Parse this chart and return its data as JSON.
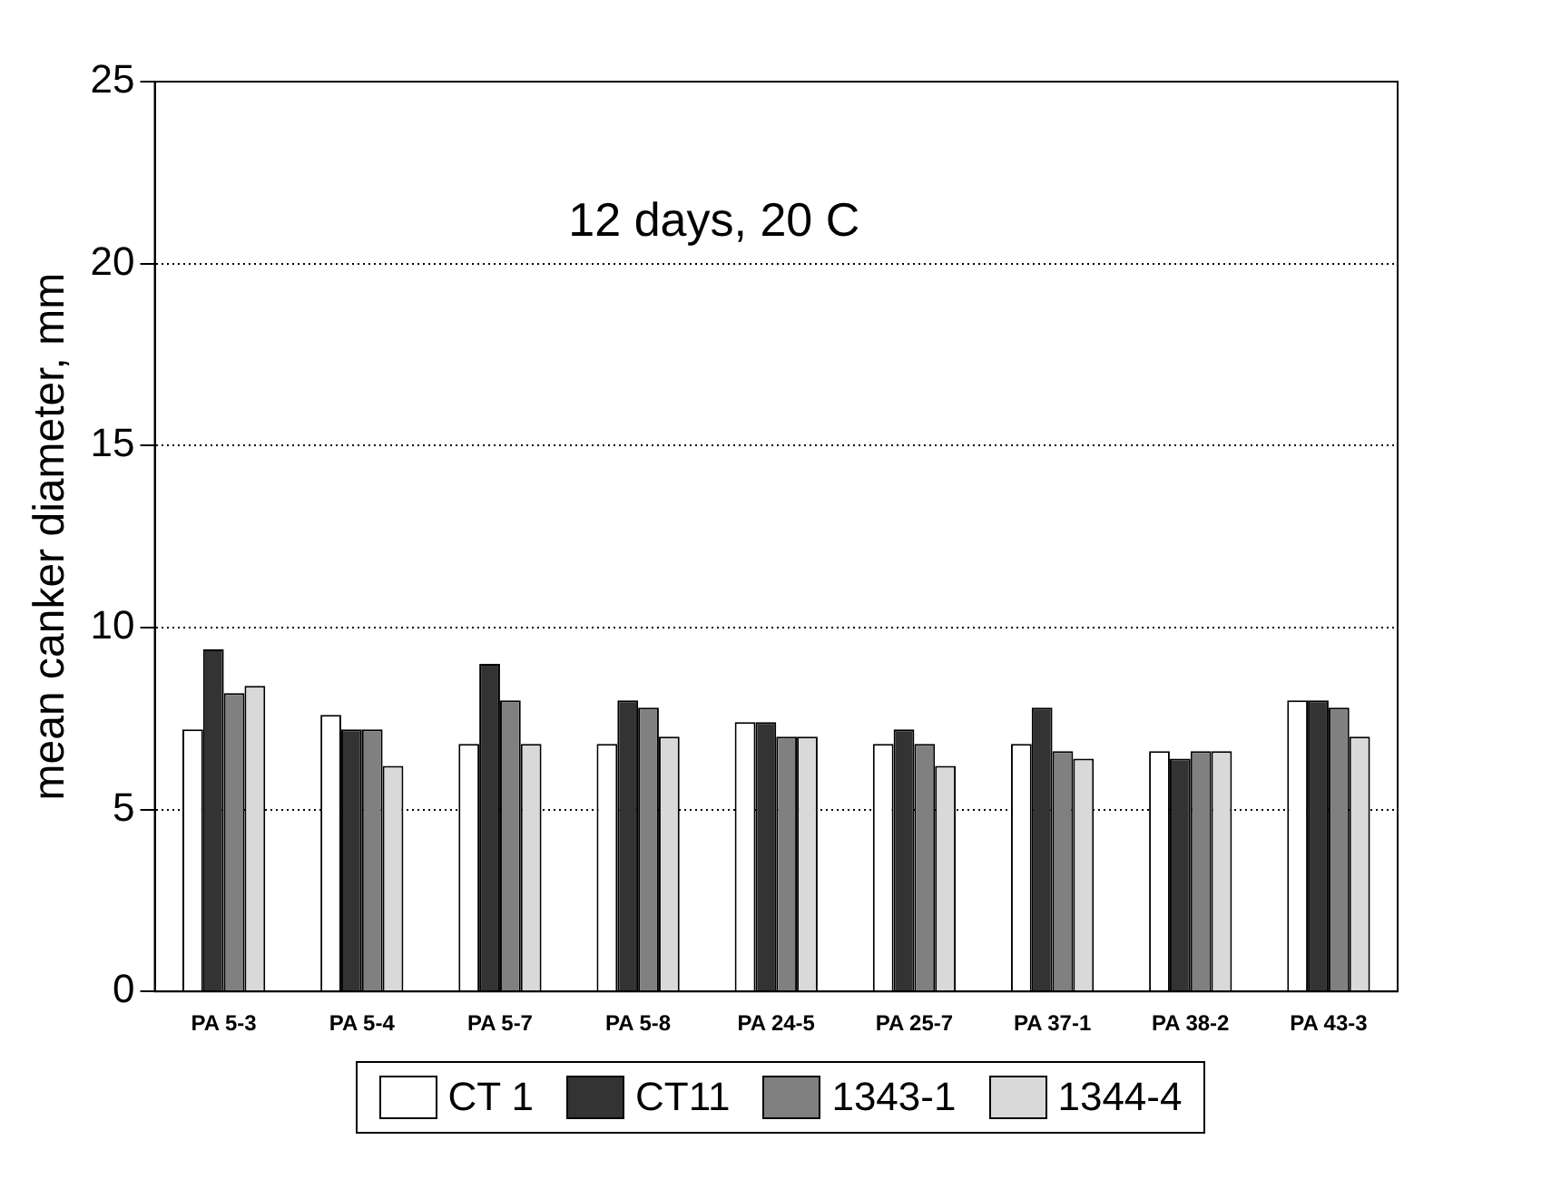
{
  "chart_data": {
    "type": "bar",
    "ylabel": "mean canker diameter, mm",
    "annotations": [
      "12 days, 20 C"
    ],
    "categories": [
      "PA 5-3",
      "PA 5-4",
      "PA 5-7",
      "PA 5-8",
      "PA 24-5",
      "PA 25-7",
      "PA 37-1",
      "PA 38-2",
      "PA 43-3"
    ],
    "series": [
      {
        "name": "CT 1",
        "color": "#ffffff",
        "values": [
          7.2,
          7.6,
          6.8,
          6.8,
          7.4,
          6.8,
          6.8,
          6.6,
          8.0
        ]
      },
      {
        "name": "CT11",
        "color": "#333333",
        "values": [
          9.4,
          7.2,
          9.0,
          8.0,
          7.4,
          7.2,
          7.8,
          6.4,
          8.0
        ]
      },
      {
        "name": "1343-1",
        "color": "#808080",
        "values": [
          8.2,
          7.2,
          8.0,
          7.8,
          7.0,
          6.8,
          6.6,
          6.6,
          7.8
        ]
      },
      {
        "name": "1344-4",
        "color": "#d9d9d9",
        "values": [
          8.4,
          6.2,
          6.8,
          7.0,
          7.0,
          6.2,
          6.4,
          6.6,
          7.0
        ]
      }
    ],
    "ylim": [
      0,
      25
    ],
    "yticks": [
      0,
      5,
      10,
      15,
      20,
      25
    ],
    "grid": "y",
    "legend": "bottom"
  }
}
